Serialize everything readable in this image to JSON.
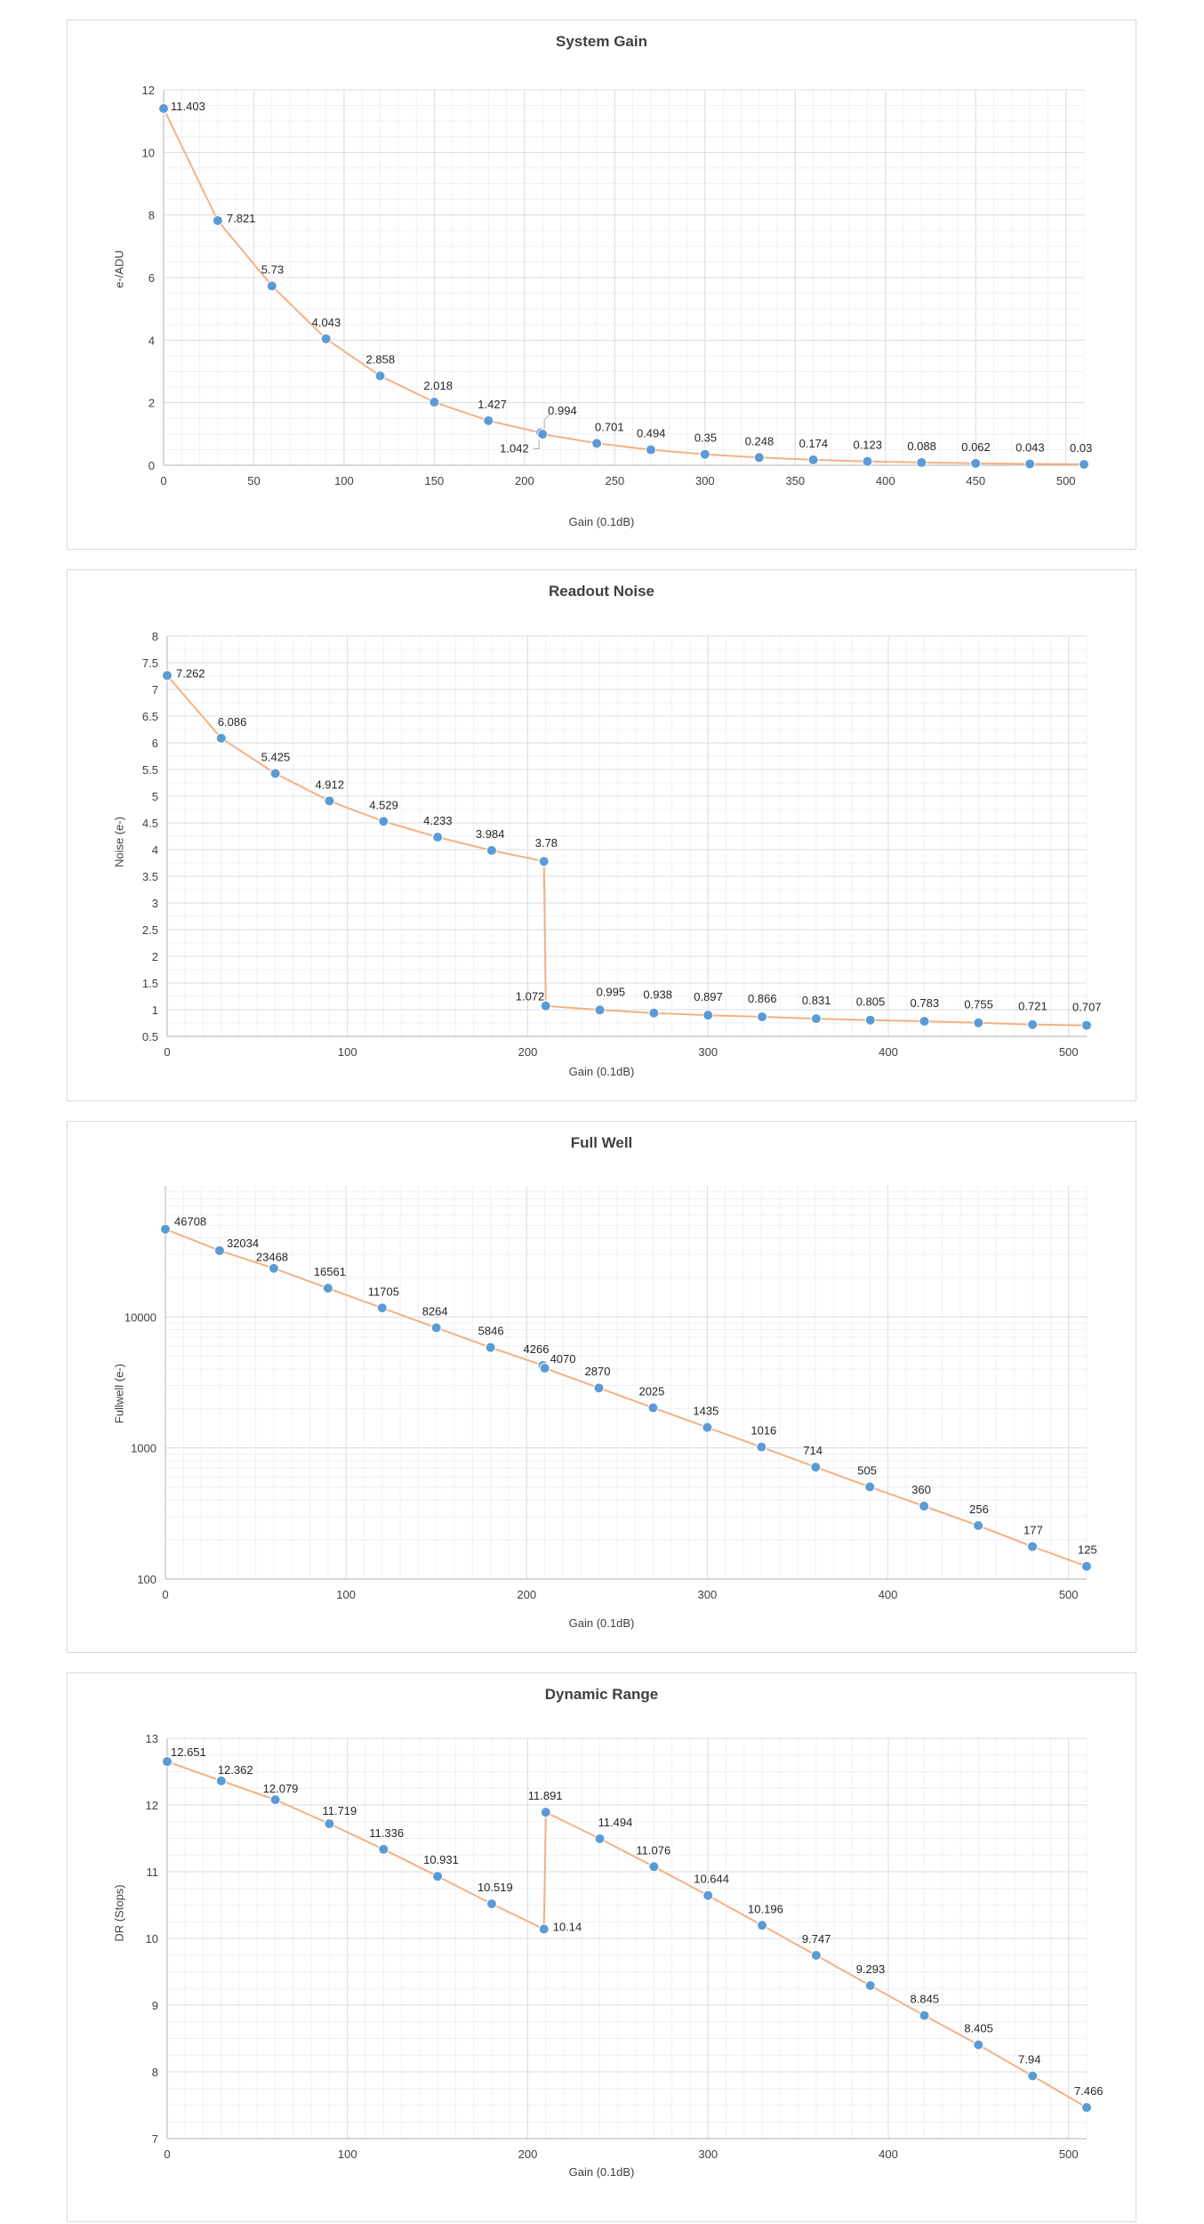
{
  "chart_data": [
    {
      "type": "line",
      "title": "System Gain",
      "xlabel": "Gain (0.1dB)",
      "ylabel": "e-/ADU",
      "xlim": [
        0,
        510
      ],
      "ylim": [
        0,
        12
      ],
      "xticks": [
        0,
        50,
        100,
        150,
        200,
        250,
        300,
        350,
        400,
        450,
        500
      ],
      "yticks": [
        0,
        2,
        4,
        6,
        8,
        10,
        12
      ],
      "grid": true,
      "x": [
        0,
        30,
        60,
        90,
        120,
        150,
        180,
        209,
        210,
        240,
        270,
        300,
        330,
        360,
        390,
        420,
        450,
        480,
        510
      ],
      "values": [
        11.403,
        7.821,
        5.73,
        4.043,
        2.858,
        2.018,
        1.427,
        1.042,
        0.994,
        0.701,
        0.494,
        0.35,
        0.248,
        0.174,
        0.123,
        0.088,
        0.062,
        0.043,
        0.03
      ],
      "labels": [
        "11.403",
        "7.821",
        "5.73",
        "4.043",
        "2.858",
        "2.018",
        "1.427",
        "1.042",
        "0.994",
        "0.701",
        "0.494",
        "0.35",
        "0.248",
        "0.174",
        "0.123",
        "0.088",
        "0.062",
        "0.043",
        "0.03"
      ]
    },
    {
      "type": "line",
      "title": "Readout Noise",
      "xlabel": "Gain (0.1dB)",
      "ylabel": "Noise (e-)",
      "xlim": [
        0,
        510
      ],
      "ylim": [
        0.5,
        8
      ],
      "xticks": [
        0,
        100,
        200,
        300,
        400,
        500
      ],
      "yticks": [
        0.5,
        1,
        1.5,
        2,
        2.5,
        3,
        3.5,
        4,
        4.5,
        5,
        5.5,
        6,
        6.5,
        7,
        7.5,
        8
      ],
      "grid": true,
      "x": [
        0,
        30,
        60,
        90,
        120,
        150,
        180,
        209,
        210,
        240,
        270,
        300,
        330,
        360,
        390,
        420,
        450,
        480,
        510
      ],
      "values": [
        7.262,
        6.086,
        5.425,
        4.912,
        4.529,
        4.233,
        3.984,
        3.78,
        1.072,
        0.995,
        0.938,
        0.897,
        0.866,
        0.831,
        0.805,
        0.783,
        0.755,
        0.721,
        0.707
      ],
      "labels": [
        "7.262",
        "6.086",
        "5.425",
        "4.912",
        "4.529",
        "4.233",
        "3.984",
        "3.78",
        "1.072",
        "0.995",
        "0.938",
        "0.897",
        "0.866",
        "0.831",
        "0.805",
        "0.783",
        "0.755",
        "0.721",
        "0.707"
      ]
    },
    {
      "type": "line",
      "title": "Full Well",
      "xlabel": "Gain (0.1dB)",
      "ylabel": "Fullwell (e-)",
      "yscale": "log",
      "xlim": [
        0,
        510
      ],
      "ylim": [
        100,
        100000
      ],
      "xticks": [
        0,
        100,
        200,
        300,
        400,
        500
      ],
      "yticks": [
        100,
        1000,
        10000
      ],
      "grid": true,
      "x": [
        0,
        30,
        60,
        90,
        120,
        150,
        180,
        209,
        210,
        240,
        270,
        300,
        330,
        360,
        390,
        420,
        450,
        480,
        510
      ],
      "values": [
        46708,
        32034,
        23468,
        16561,
        11705,
        8264,
        5846,
        4266,
        4070,
        2870,
        2025,
        1435,
        1016,
        714,
        505,
        360,
        256,
        177,
        125
      ],
      "labels": [
        "46708",
        "32034",
        "23468",
        "16561",
        "11705",
        "8264",
        "5846",
        "4266",
        "4070",
        "2870",
        "2025",
        "1435",
        "1016",
        "714",
        "505",
        "360",
        "256",
        "177",
        "125"
      ]
    },
    {
      "type": "line",
      "title": "Dynamic Range",
      "xlabel": "Gain (0.1dB)",
      "ylabel": "DR (Stops)",
      "xlim": [
        0,
        510
      ],
      "ylim": [
        7,
        13
      ],
      "xticks": [
        0,
        100,
        200,
        300,
        400,
        500
      ],
      "yticks": [
        7,
        8,
        9,
        10,
        11,
        12,
        13
      ],
      "grid": true,
      "x": [
        0,
        30,
        60,
        90,
        120,
        150,
        180,
        209,
        210,
        240,
        270,
        300,
        330,
        360,
        390,
        420,
        450,
        480,
        510
      ],
      "values": [
        12.651,
        12.362,
        12.079,
        11.719,
        11.336,
        10.931,
        10.519,
        10.14,
        11.891,
        11.494,
        11.076,
        10.644,
        10.196,
        9.747,
        9.293,
        8.845,
        8.405,
        7.94,
        7.466
      ],
      "labels": [
        "12.651",
        "12.362",
        "12.079",
        "11.719",
        "11.336",
        "10.931",
        "10.519",
        "10.14",
        "11.891",
        "11.494",
        "11.076",
        "10.644",
        "10.196",
        "9.747",
        "9.293",
        "8.845",
        "8.405",
        "7.94",
        "7.466"
      ]
    }
  ]
}
